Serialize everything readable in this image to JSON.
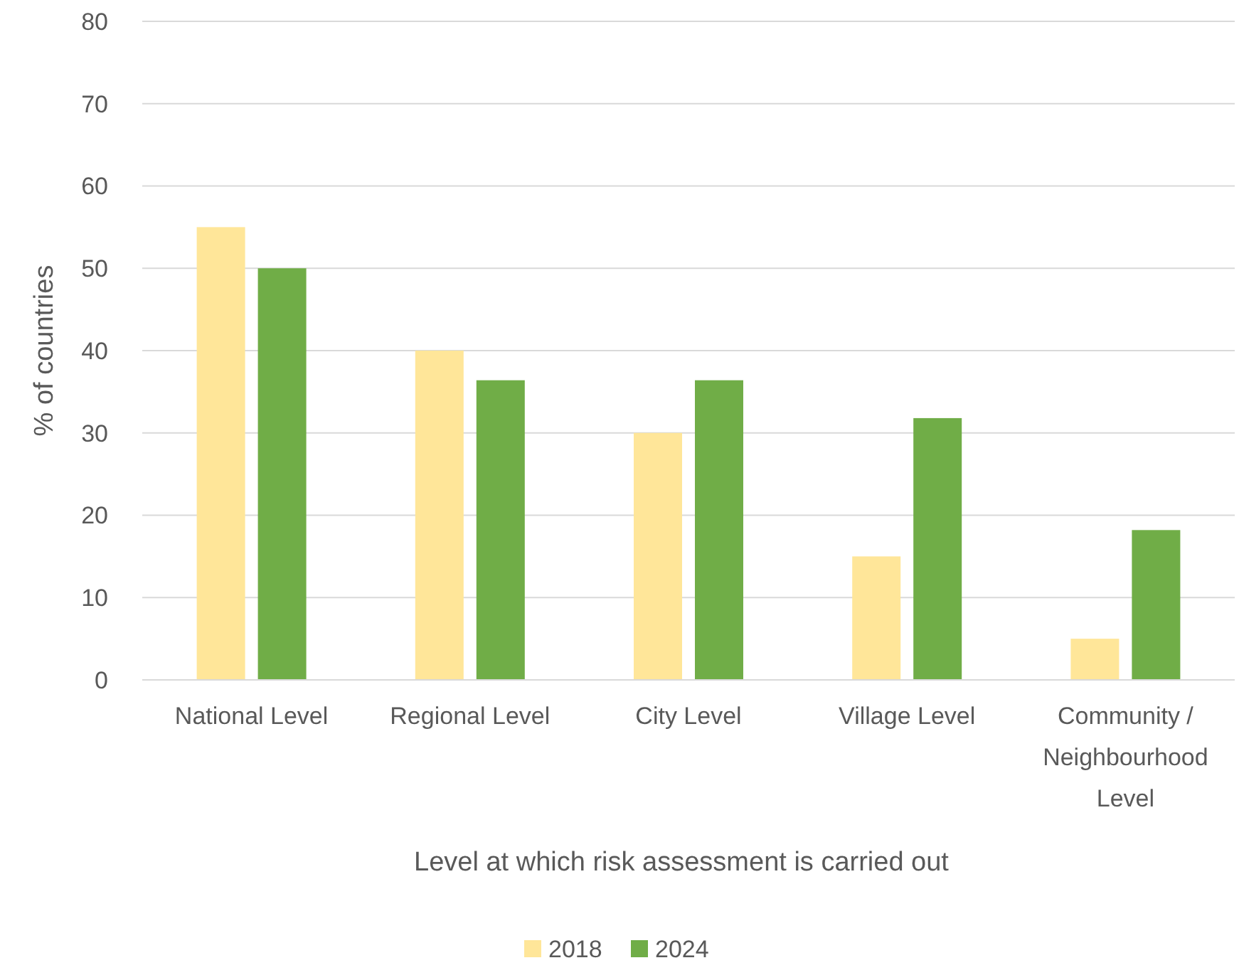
{
  "chart_data": {
    "type": "bar",
    "xlabel": "Level at which risk assessment is carried out",
    "ylabel": "% of countries",
    "categories": [
      "National Level",
      "Regional Level",
      "City Level",
      "Village Level",
      "Community / Neighbourhood Level"
    ],
    "series": [
      {
        "name": "2018",
        "color": "#ffe699",
        "values": [
          55,
          40,
          30,
          15,
          5
        ]
      },
      {
        "name": "2024",
        "color": "#70ad47",
        "values": [
          50,
          36.4,
          36.4,
          31.8,
          18.2
        ]
      }
    ],
    "ylim": [
      0,
      80
    ],
    "yticks": [
      0,
      10,
      20,
      30,
      40,
      50,
      60,
      70,
      80
    ],
    "grid": "y",
    "legend": "bottom"
  }
}
